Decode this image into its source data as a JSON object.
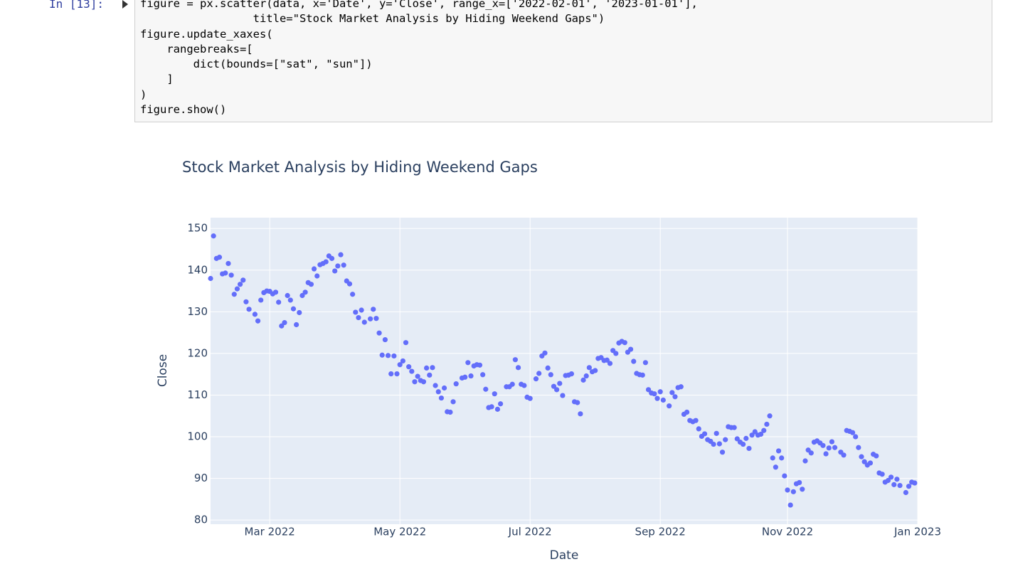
{
  "code": {
    "prompt": "In [13]:",
    "lines": [
      "figure = px.scatter(data, x='Date', y='Close', range_x=['2022-02-01', '2023-01-01'],",
      "                 title=\"Stock Market Analysis by Hiding Weekend Gaps\")",
      "figure.update_xaxes(",
      "    rangebreaks=[",
      "        dict(bounds=[\"sat\", \"sun\"])",
      "    ]",
      ")",
      "figure.show()"
    ]
  },
  "chart_data": {
    "type": "scatter",
    "title": "Stock Market Analysis by Hiding Weekend Gaps",
    "x_label": "Date",
    "y_label": "Close",
    "color": "#636efa",
    "grid": true,
    "values": [
      138,
      148.2,
      142.8,
      143.1,
      139.1,
      139.3,
      141.6,
      138.8,
      134.2,
      135.5,
      136.6,
      137.6,
      132.4,
      130.6,
      null,
      129.4,
      127.8,
      132.8,
      134.6,
      135,
      134.9,
      134.3,
      134.7,
      132.3,
      126.6,
      127.4,
      133.9,
      132.8,
      130.7,
      126.9,
      129.8,
      133.9,
      134.7,
      137,
      136.6,
      140.3,
      138.6,
      141.3,
      141.6,
      142,
      143.4,
      142.8,
      139.8,
      141,
      143.7,
      141.2,
      137.4,
      136.7,
      134.2,
      129.9,
      128.6,
      130.4,
      127.5,
      null,
      128.3,
      130.6,
      128.4,
      124.9,
      119.6,
      123.3,
      119.5,
      115.1,
      119.4,
      115.1,
      117.3,
      118.2,
      122.6,
      116.8,
      115.7,
      113.2,
      114.5,
      113.5,
      113.2,
      116.5,
      114.8,
      116.6,
      112.3,
      110.8,
      109.3,
      111.7,
      106,
      105.9,
      108.4,
      112.7,
      null,
      114.1,
      114.3,
      117.8,
      114.6,
      117,
      117.3,
      117.2,
      114.9,
      111.4,
      107,
      107.2,
      110.3,
      106.6,
      107.9,
      null,
      112,
      112,
      112.6,
      118.5,
      116.6,
      112.6,
      112.3,
      109.5,
      109.2,
      null,
      113.9,
      115.2,
      119.4,
      120.1,
      116.5,
      114.9,
      112.1,
      111.3,
      112.8,
      109.9,
      114.7,
      114.8,
      115.1,
      108.4,
      108.2,
      105.5,
      113.6,
      114.6,
      116.6,
      115.6,
      115.9,
      118.8,
      119,
      118.3,
      118.4,
      117.6,
      120.7,
      120,
      122.5,
      122.9,
      122.6,
      120.3,
      121,
      118.1,
      115.2,
      114.9,
      114.8,
      117.8,
      111.3,
      110.5,
      110.3,
      109.2,
      110.8,
      108.8,
      null,
      107.4,
      110.6,
      109.6,
      111.8,
      112,
      105.4,
      105.9,
      103.9,
      103.6,
      103.9,
      101.9,
      100.1,
      100.7,
      99.3,
      98.9,
      98.2,
      100.8,
      98.3,
      96.3,
      99.3,
      102.4,
      102.2,
      102.2,
      99.5,
      98.7,
      98.2,
      99.6,
      97.2,
      100.4,
      101.2,
      100.4,
      100.6,
      101.5,
      103,
      105,
      94.9,
      92.7,
      96.6,
      94.9,
      90.6,
      87.2,
      83.6,
      86.8,
      88.7,
      89,
      87.4,
      94.2,
      96.8,
      96.1,
      98.7,
      99,
      98.5,
      97.9,
      95.9,
      97.3,
      98.8,
      97.4,
      null,
      96.3,
      95.6,
      101.5,
      101.3,
      101,
      100,
      97.4,
      95.2,
      94,
      93.2,
      93.7,
      95.8,
      95.4,
      91.3,
      91,
      89.1,
      89.5,
      90.3,
      88.5,
      89.8,
      88.3,
      null,
      86.6,
      88.1,
      89.1,
      88.9
    ],
    "xlim": [
      0,
      239
    ],
    "xticks": [
      {
        "value": 20,
        "label": "Mar 2022"
      },
      {
        "value": 64,
        "label": "May 2022"
      },
      {
        "value": 108,
        "label": "Jul 2022"
      },
      {
        "value": 152,
        "label": "Sep 2022"
      },
      {
        "value": 195,
        "label": "Nov 2022"
      },
      {
        "value": 239,
        "label": "Jan 2023"
      }
    ],
    "ylim": [
      79,
      152.6
    ],
    "yticks": [
      80,
      90,
      100,
      110,
      120,
      130,
      140,
      150
    ]
  }
}
